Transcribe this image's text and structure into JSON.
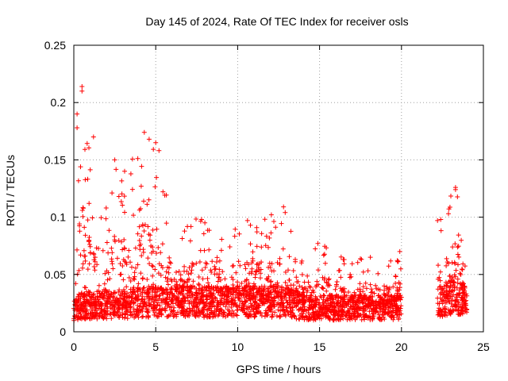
{
  "chart_data": {
    "type": "scatter",
    "title": "Day 145 of 2024, Rate Of TEC Index for receiver osls",
    "xlabel": "GPS time / hours",
    "ylabel": "ROTI / TECUs",
    "xlim": [
      0,
      25
    ],
    "ylim": [
      0,
      0.25
    ],
    "xticks": [
      0,
      5,
      10,
      15,
      20,
      25
    ],
    "xtick_labels": [
      "0",
      "5",
      "10",
      "15",
      "20",
      "25"
    ],
    "yticks": [
      0,
      0.05,
      0.1,
      0.15,
      0.2,
      0.25
    ],
    "ytick_labels": [
      "0",
      "0.05",
      "0.1",
      "0.15",
      "0.2",
      "0.25"
    ],
    "grid": true,
    "marker": "plus",
    "color": "#ff0000",
    "data_gap_hours": [
      20.0,
      22.2
    ],
    "envelope": [
      {
        "hour": 0.0,
        "base": 0.018,
        "peak": 0.08
      },
      {
        "hour": 0.5,
        "base": 0.022,
        "peak": 0.215
      },
      {
        "hour": 1.0,
        "base": 0.022,
        "peak": 0.17
      },
      {
        "hour": 2.0,
        "base": 0.022,
        "peak": 0.11
      },
      {
        "hour": 2.5,
        "base": 0.022,
        "peak": 0.15
      },
      {
        "hour": 3.0,
        "base": 0.022,
        "peak": 0.14
      },
      {
        "hour": 4.3,
        "base": 0.025,
        "peak": 0.175
      },
      {
        "hour": 5.2,
        "base": 0.025,
        "peak": 0.165
      },
      {
        "hour": 6.0,
        "base": 0.025,
        "peak": 0.09
      },
      {
        "hour": 7.7,
        "base": 0.025,
        "peak": 0.1
      },
      {
        "hour": 9.0,
        "base": 0.025,
        "peak": 0.085
      },
      {
        "hour": 10.5,
        "base": 0.025,
        "peak": 0.098
      },
      {
        "hour": 12.8,
        "base": 0.025,
        "peak": 0.11
      },
      {
        "hour": 14.0,
        "base": 0.02,
        "peak": 0.06
      },
      {
        "hour": 15.0,
        "base": 0.02,
        "peak": 0.078
      },
      {
        "hour": 16.5,
        "base": 0.02,
        "peak": 0.065
      },
      {
        "hour": 18.0,
        "base": 0.02,
        "peak": 0.065
      },
      {
        "hour": 19.0,
        "base": 0.02,
        "peak": 0.06
      },
      {
        "hour": 20.0,
        "base": 0.02,
        "peak": 0.07
      },
      {
        "hour": 22.2,
        "base": 0.025,
        "peak": 0.098
      },
      {
        "hour": 23.3,
        "base": 0.03,
        "peak": 0.126
      },
      {
        "hour": 24.0,
        "base": 0.025,
        "peak": 0.085
      }
    ]
  }
}
